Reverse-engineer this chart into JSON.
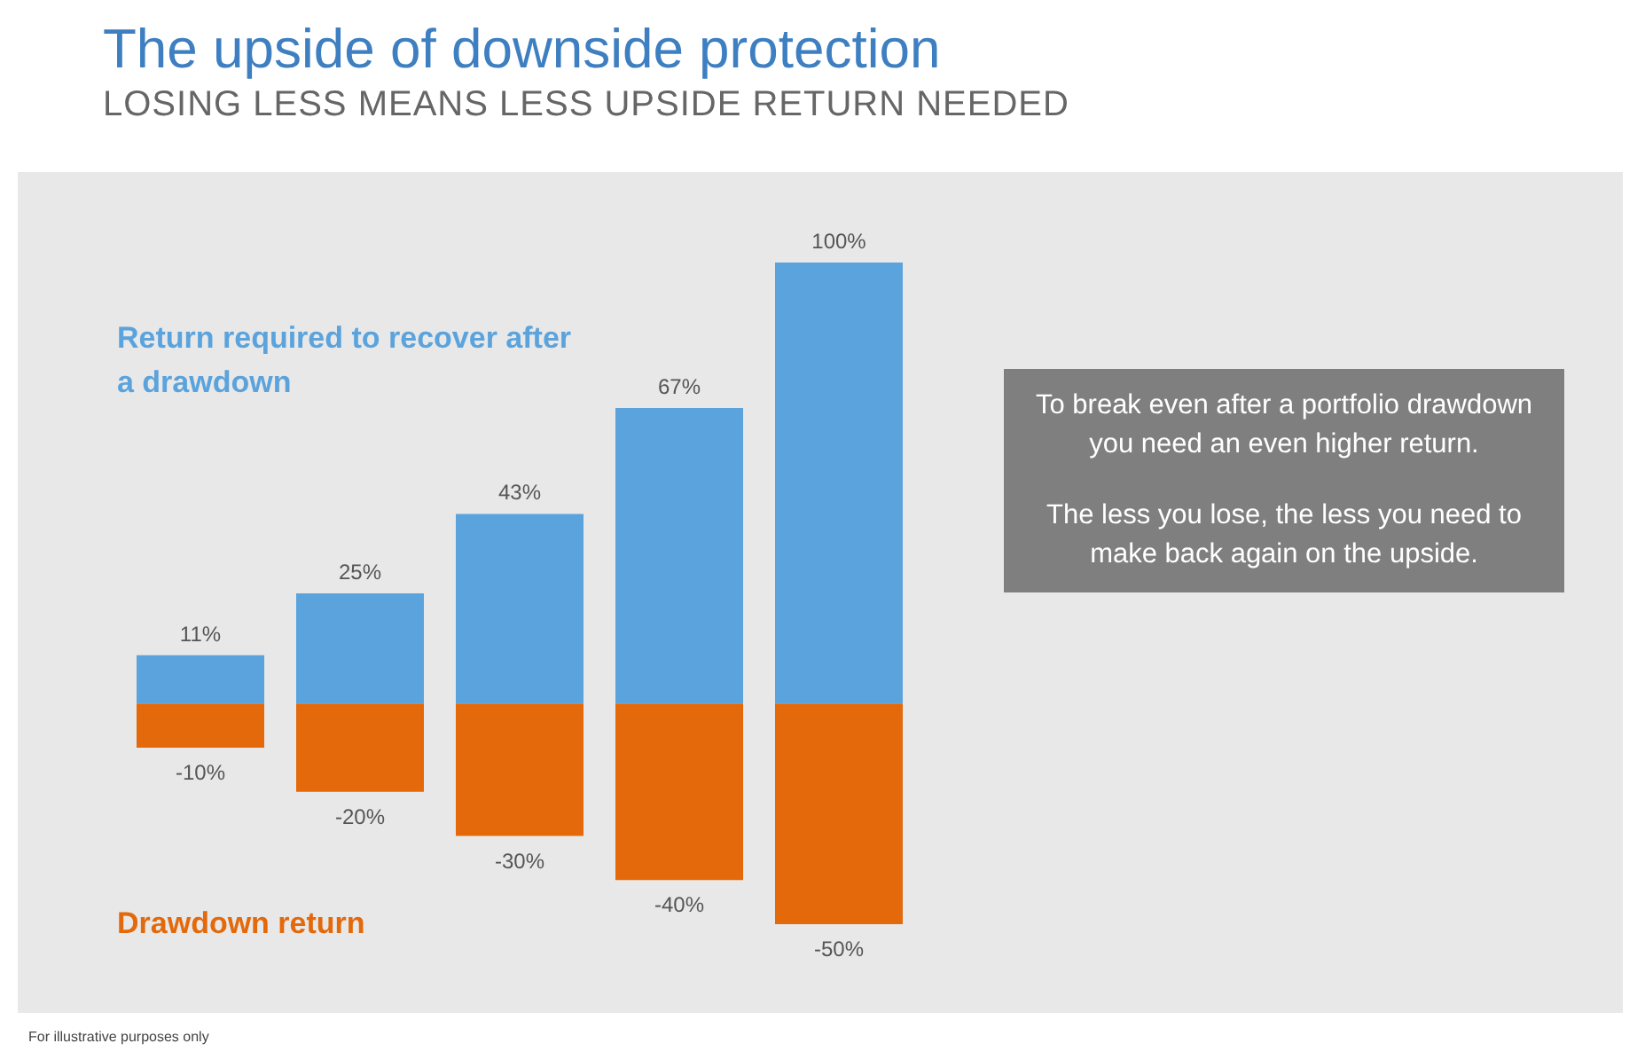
{
  "chart_data": {
    "type": "bar",
    "title": "The upside of downside protection",
    "subtitle": "LOSING LESS MEANS LESS UPSIDE RETURN NEEDED",
    "categories": [
      null,
      null,
      null,
      null,
      null
    ],
    "stacked": true,
    "series": [
      {
        "name": "Return required to recover after a drawdown",
        "color": "#5ba3dc",
        "values": [
          11,
          25,
          43,
          67,
          100
        ],
        "value_labels": [
          "11%",
          "25%",
          "43%",
          "67%",
          "100%"
        ]
      },
      {
        "name": "Drawdown return",
        "color": "#e3690b",
        "values": [
          -10,
          -20,
          -30,
          -40,
          -50
        ],
        "value_labels": [
          "-10%",
          "-20%",
          "-30%",
          "-40%",
          "-50%"
        ]
      }
    ],
    "legend": false,
    "annotations": [
      "To break even after a portfolio drawdown you need an even higher return.",
      "The less you lose, the less you need to make back again on the upside.",
      "For illustrative purposes only"
    ]
  }
}
